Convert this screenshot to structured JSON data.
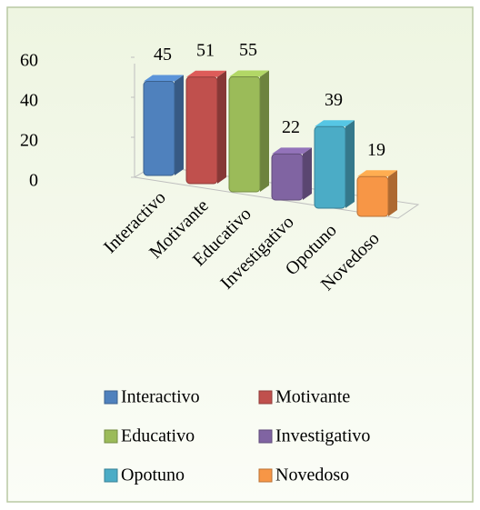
{
  "chart_data": {
    "type": "bar3d",
    "categories": [
      "Interactivo",
      "Motivante",
      "Educativo",
      "Investigativo",
      "Opotuno",
      "Novedoso"
    ],
    "values": [
      45,
      51,
      55,
      22,
      39,
      19
    ],
    "colors": [
      "#4f81bd",
      "#c0504d",
      "#9bbb59",
      "#8064a2",
      "#4bacc6",
      "#f79646"
    ],
    "ylim": [
      0,
      60
    ],
    "yticks": [
      0,
      20,
      40,
      60
    ],
    "legend": "bottom"
  }
}
